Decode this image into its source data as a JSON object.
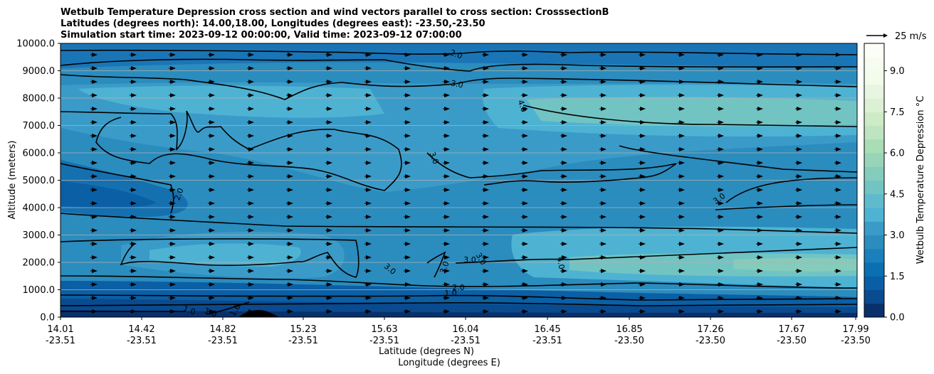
{
  "chart_data": {
    "type": "heatmap",
    "title_lines": [
      "Wetbulb Temperature Depression cross section and wind vectors parallel to cross section: CrosssectionB",
      "Latitudes (degrees north): 14.00,18.00, Longitudes (degrees east): -23.50,-23.50",
      "Simulation start time: 2023-09-12 00:00:00, Valid time: 2023-09-12 07:00:00"
    ],
    "ylabel": "Altitude (meters)",
    "xlabel_lat": "Latitude (degrees N)",
    "xlabel_lon": "Longitude (degrees E)",
    "ylim": [
      0,
      10000
    ],
    "yticks": [
      "0.0",
      "1000.0",
      "2000.0",
      "3000.0",
      "4000.0",
      "5000.0",
      "6000.0",
      "7000.0",
      "8000.0",
      "9000.0",
      "10000.0"
    ],
    "xticks": [
      {
        "lat": "14.01",
        "lon": "-23.51"
      },
      {
        "lat": "14.42",
        "lon": "-23.51"
      },
      {
        "lat": "14.82",
        "lon": "-23.51"
      },
      {
        "lat": "15.23",
        "lon": "-23.51"
      },
      {
        "lat": "15.63",
        "lon": "-23.51"
      },
      {
        "lat": "16.04",
        "lon": "-23.51"
      },
      {
        "lat": "16.45",
        "lon": "-23.51"
      },
      {
        "lat": "16.85",
        "lon": "-23.50"
      },
      {
        "lat": "17.26",
        "lon": "-23.50"
      },
      {
        "lat": "17.67",
        "lon": "-23.50"
      },
      {
        "lat": "17.99",
        "lon": "-23.50"
      }
    ],
    "grid": "horizontal",
    "colorbar": {
      "label": "Wetbulb Temperature Depression °C",
      "range": [
        0,
        10
      ],
      "ticks": [
        "0.0",
        "1.5",
        "3.0",
        "4.5",
        "6.0",
        "7.5",
        "9.0"
      ],
      "colors": [
        "#08306b",
        "#0a4a8f",
        "#0a5ea6",
        "#0b70b1",
        "#1a80bb",
        "#2b8cbe",
        "#3b9bc8",
        "#4eb3d3",
        "#5fbacd",
        "#72c4c3",
        "#84ccbb",
        "#98d5b8",
        "#a8ddb5",
        "#bde5bf",
        "#cdebc5",
        "#dcf1d4",
        "#e8f6e1",
        "#f3fbeb",
        "#f7fcf0",
        "#fbfef6"
      ]
    },
    "wind_reference": {
      "label": "25 m/s",
      "speed": 25
    },
    "contour_labels": [
      "1.0",
      "1.0",
      "1.0",
      "1.0",
      "2.0",
      "2.0",
      "2.0",
      "3.0",
      "3.0",
      "3.0",
      "3.0",
      "3.0",
      "3.0",
      "3.0",
      "4.0",
      "4.0"
    ]
  }
}
